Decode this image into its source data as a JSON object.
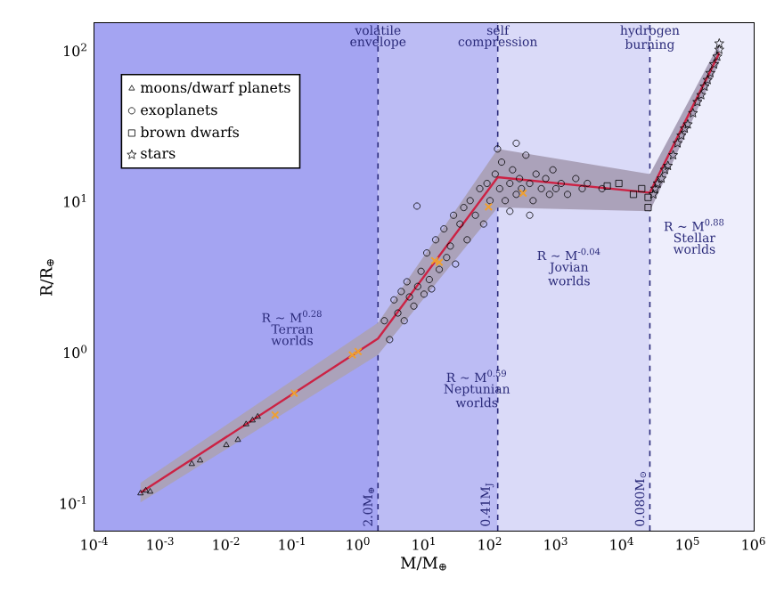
{
  "chart_data": {
    "type": "scatter",
    "xlabel": "M/M$_{⊕}$",
    "ylabel": "R/R$_{⊕}$",
    "log": "xy",
    "legend": "top left",
    "xlim": [
      0.0001,
      1000000
    ],
    "ylim": [
      0.065,
      150
    ],
    "xticks": [
      {
        "value": 0.0001,
        "label": "10$^{-4}$"
      },
      {
        "value": 0.001,
        "label": "10$^{-3}$"
      },
      {
        "value": 0.01,
        "label": "10$^{-2}$"
      },
      {
        "value": 0.1,
        "label": "10$^{-1}$"
      },
      {
        "value": 1,
        "label": "10$^{0}$"
      },
      {
        "value": 10,
        "label": "10$^{1}$"
      },
      {
        "value": 100,
        "label": "10$^{2}$"
      },
      {
        "value": 1000,
        "label": "10$^{3}$"
      },
      {
        "value": 10000,
        "label": "10$^{4}$"
      },
      {
        "value": 100000,
        "label": "10$^{5}$"
      },
      {
        "value": 1000000,
        "label": "10$^{6}$"
      }
    ],
    "yticks": [
      {
        "value": 0.1,
        "label": "10$^{-1}$"
      },
      {
        "value": 1,
        "label": "10$^{0}$"
      },
      {
        "value": 10,
        "label": "10$^{1}$"
      },
      {
        "value": 100,
        "label": "10$^{2}$"
      }
    ],
    "bands": [
      {
        "axis": "x",
        "from": 0.0001,
        "to": 2.0,
        "color": "#a4a4f2"
      },
      {
        "axis": "x",
        "from": 2.0,
        "to": 131,
        "color": "#bcbcf4"
      },
      {
        "axis": "x",
        "from": 131,
        "to": 26600,
        "color": "#dadaf8"
      },
      {
        "axis": "x",
        "from": 26600,
        "to": 1000000,
        "color": "#eeeefc"
      }
    ],
    "ref_lines": [
      {
        "axis": "x",
        "value": 2.0,
        "label": "2.0M$_{⊕}$",
        "color": "#2a2a7a",
        "line_style": "dashed"
      },
      {
        "axis": "x",
        "value": 131,
        "label": "0.41M$_{J}$",
        "color": "#2a2a7a",
        "line_style": "dashed"
      },
      {
        "axis": "x",
        "value": 26600,
        "label": "0.080M$_{⊙}$",
        "color": "#2a2a7a",
        "line_style": "dashed"
      }
    ],
    "annotations": [
      {
        "text": "volatile envelope",
        "x": 2.0,
        "y": 150
      },
      {
        "text": "self compression",
        "x": 131,
        "y": 150
      },
      {
        "text": "hydrogen burning",
        "x": 26600,
        "y": 150
      },
      "R ∼ M$^{0.28}$ Terran worlds",
      "R ∼ M$^{0.59}$ Neptunian worlds",
      "R ∼ M$^{-0.04}$ Jovian worlds",
      "R ∼ M$^{0.88}$ Stellar worlds"
    ],
    "series": [
      {
        "type": "line",
        "color": "#cc2244",
        "marker": "none",
        "line_style": "solid",
        "x": [
          0.0005,
          2.0,
          131,
          26600,
          300000
        ],
        "values": [
          0.116,
          1.22,
          14.3,
          11.3,
          95
        ],
        "lower": [
          0.1,
          0.95,
          9,
          8.5,
          82
        ],
        "upper": [
          0.135,
          1.55,
          22,
          15,
          110
        ]
      },
      {
        "name": "moons/dwarf planets",
        "color": "#000000",
        "marker": "triangle",
        "x": [
          0.0005,
          0.0006,
          0.0007,
          0.003,
          0.004,
          0.01,
          0.015,
          0.02,
          0.025,
          0.03
        ],
        "values": [
          0.115,
          0.12,
          0.118,
          0.18,
          0.19,
          0.24,
          0.26,
          0.33,
          0.35,
          0.37
        ]
      },
      {
        "name": "exoplanets",
        "color": "#000000",
        "marker": "circle",
        "x": [
          2.5,
          3,
          3.5,
          4,
          4.5,
          5,
          5.5,
          6,
          7,
          7.8,
          8,
          9,
          10,
          11,
          12,
          13,
          15,
          17,
          20,
          22,
          25,
          28,
          30,
          35,
          40,
          45,
          50,
          60,
          70,
          80,
          90,
          100,
          120,
          140,
          150,
          170,
          200,
          220,
          250,
          280,
          300,
          350,
          400,
          450,
          500,
          600,
          700,
          800,
          900,
          1000,
          1200,
          1500,
          2000,
          2500,
          3000,
          5000,
          200,
          400,
          130,
          250
        ],
        "values": [
          1.6,
          1.2,
          2.2,
          1.8,
          2.5,
          1.6,
          2.9,
          2.3,
          2.0,
          9.2,
          2.7,
          3.4,
          2.4,
          4.5,
          3.0,
          2.6,
          5.5,
          3.5,
          6.5,
          4.2,
          5.0,
          8,
          3.8,
          7,
          9,
          5.5,
          10,
          8,
          12,
          7,
          13,
          10,
          15,
          12,
          18,
          10,
          13,
          16,
          11,
          14,
          12,
          20,
          13,
          10,
          15,
          12,
          14,
          11,
          16,
          12,
          13,
          11,
          14,
          12,
          13,
          12,
          8.5,
          8,
          22,
          24
        ]
      },
      {
        "name": "brown dwarfs",
        "color": "#000000",
        "marker": "square",
        "x": [
          6000,
          9000,
          15000,
          20000,
          25000,
          25000
        ],
        "values": [
          12.5,
          13,
          11,
          12,
          10.5,
          9
        ]
      },
      {
        "name": "stars",
        "color": "#000000",
        "marker": "star",
        "x": [
          30000,
          32000,
          35000,
          40000,
          45000,
          50000,
          60000,
          70000,
          80000,
          90000,
          100000,
          120000,
          140000,
          160000,
          180000,
          200000,
          220000,
          250000,
          280000,
          300000,
          300000
        ],
        "values": [
          11,
          12,
          13,
          14,
          16,
          17,
          20,
          24,
          27,
          30,
          32,
          38,
          45,
          50,
          57,
          63,
          70,
          80,
          90,
          100,
          110
        ]
      },
      {
        "color": "#f0a030",
        "marker": "cross",
        "x": [
          0.055,
          0.107,
          0.815,
          1,
          14.5,
          17,
          95,
          318
        ],
        "values": [
          0.38,
          0.53,
          0.95,
          1,
          4.0,
          3.9,
          9.1,
          11.2
        ]
      }
    ]
  }
}
